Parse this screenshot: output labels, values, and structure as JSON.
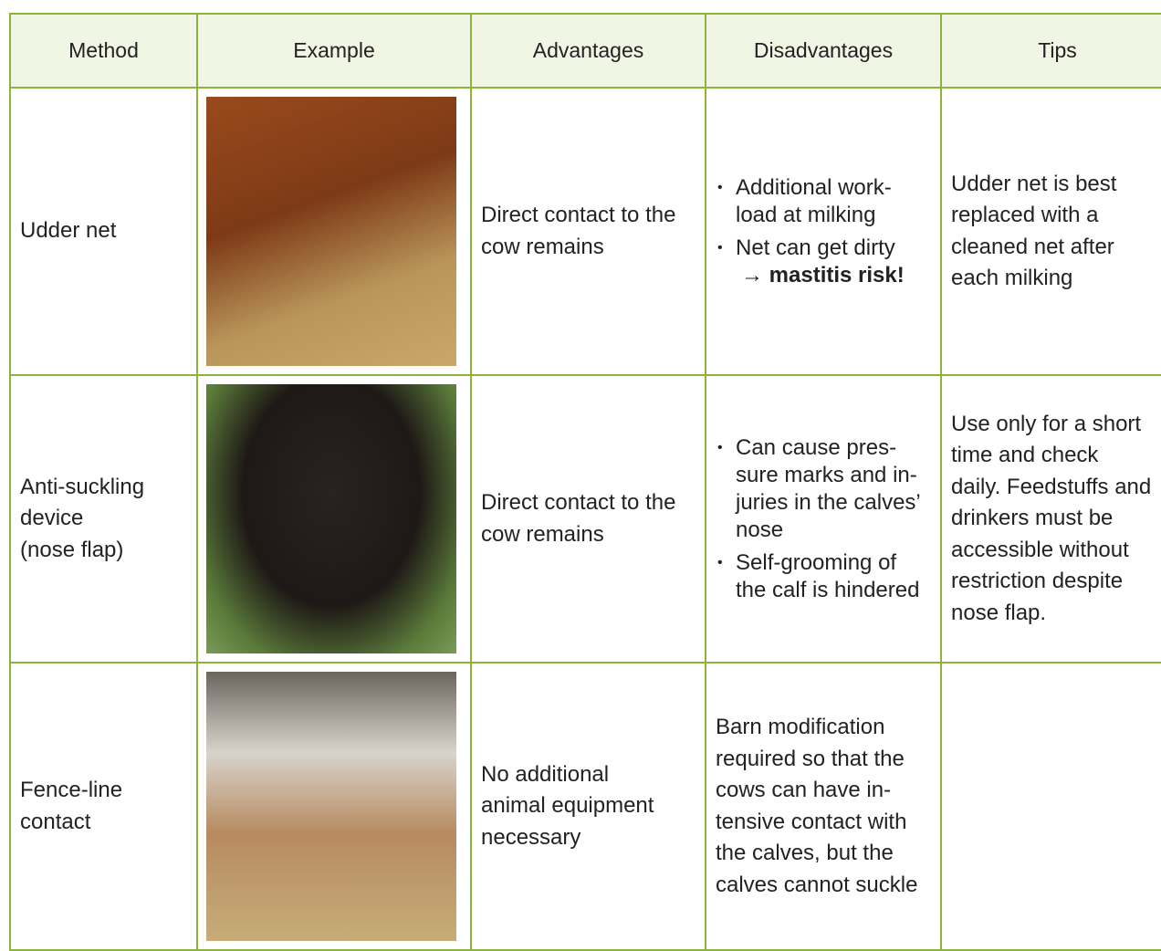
{
  "table": {
    "header": [
      "Method",
      "Example",
      "Advantages",
      "Disadvantages",
      "Tips"
    ],
    "rows": [
      {
        "method": [
          "Udder net"
        ],
        "advantages": [
          "Direct contact to the",
          "cow remains"
        ],
        "disadvantages": {
          "bullets": [
            {
              "lines": [
                "Additional work-",
                "load at milking"
              ]
            },
            {
              "lines": [
                "Net can get dirty"
              ],
              "emphasis": "→ mastitis risk!"
            }
          ]
        },
        "tips": [
          "Udder net is best",
          "replaced with a",
          "cleaned net after",
          "each milking"
        ]
      },
      {
        "method": [
          "Anti-suckling",
          "device",
          "(nose flap)"
        ],
        "advantages": [
          "Direct contact to the",
          "cow remains"
        ],
        "disadvantages": {
          "bullets": [
            {
              "lines": [
                "Can cause pres-",
                "sure marks and in-",
                "juries in the calves’",
                "nose"
              ]
            },
            {
              "lines": [
                "Self-grooming of",
                "the calf is hindered"
              ]
            }
          ]
        },
        "tips": [
          "Use only for a short",
          "time and check",
          "daily. Feedstuffs and",
          "drinkers must be",
          "accessible without",
          "restriction despite",
          "nose flap."
        ]
      },
      {
        "method": [
          "Fence-line",
          "contact"
        ],
        "advantages": [
          "No additional",
          "animal equipment",
          "necessary"
        ],
        "disadvantages": {
          "lines": [
            "Barn modification",
            "required so that the",
            "cows can have in-",
            "tensive contact with",
            "the calves, but the",
            "calves cannot suckle"
          ]
        }
      }
    ]
  }
}
